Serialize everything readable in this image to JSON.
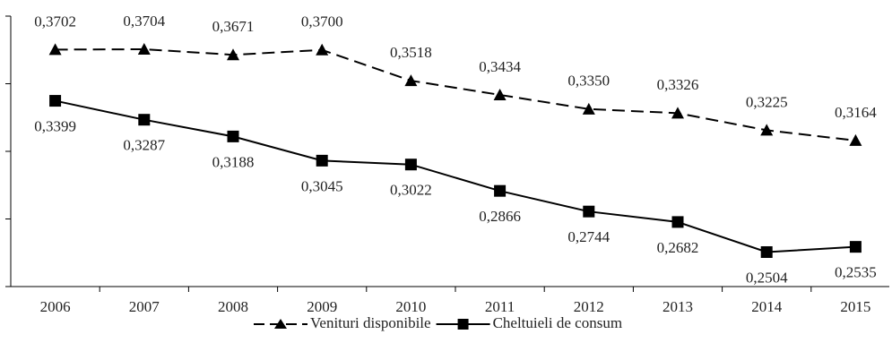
{
  "chart_data": {
    "type": "line",
    "categories": [
      "2006",
      "2007",
      "2008",
      "2009",
      "2010",
      "2011",
      "2012",
      "2013",
      "2014",
      "2015"
    ],
    "series": [
      {
        "name": "Venituri disponibile",
        "color": "#000000",
        "marker": "triangle",
        "dashed": true,
        "values": [
          0.3702,
          0.3704,
          0.3671,
          0.37,
          0.3518,
          0.3434,
          0.335,
          0.3326,
          0.3225,
          0.3164
        ],
        "value_labels": [
          "0,3702",
          "0,3704",
          "0,3671",
          "0,3700",
          "0,3518",
          "0,3434",
          "0,3350",
          "0,3326",
          "0,3225",
          "0,3164"
        ]
      },
      {
        "name": "Cheltuieli de consum",
        "color": "#000000",
        "marker": "square",
        "dashed": false,
        "values": [
          0.3399,
          0.3287,
          0.3188,
          0.3045,
          0.3022,
          0.2866,
          0.2744,
          0.2682,
          0.2504,
          0.2535
        ],
        "value_labels": [
          "0,3399",
          "0,3287",
          "0,3188",
          "0,3045",
          "0,3022",
          "0,2866",
          "0,2744",
          "0,2682",
          "0,2504",
          "0,2535"
        ]
      }
    ],
    "ylim": [
      0.23,
      0.39
    ],
    "yticks": [
      0.23,
      0.27,
      0.31,
      0.35,
      0.39
    ],
    "legend": "bottom"
  }
}
